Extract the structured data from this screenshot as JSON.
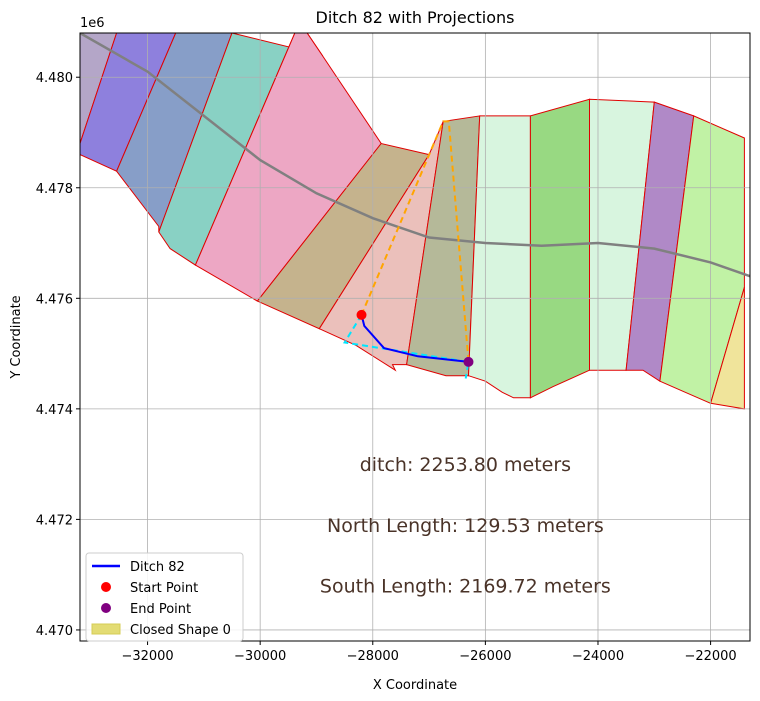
{
  "chart_data": {
    "type": "line",
    "title": "Ditch 82 with Projections",
    "xlabel": "X Coordinate",
    "ylabel": "Y Coordinate",
    "y_offset_label": "1e6",
    "xlim": [
      -33200,
      -21300
    ],
    "ylim": [
      4469800,
      4480800
    ],
    "x_ticks": [
      -32000,
      -30000,
      -28000,
      -26000,
      -24000,
      -22000
    ],
    "x_tick_labels": [
      "−32000",
      "−30000",
      "−28000",
      "−26000",
      "−24000",
      "−22000"
    ],
    "y_ticks": [
      4470000,
      4472000,
      4474000,
      4476000,
      4478000,
      4480000
    ],
    "y_tick_labels": [
      "4.470",
      "4.472",
      "4.474",
      "4.476",
      "4.478",
      "4.480"
    ],
    "grid": true,
    "legend_position": "lower-left",
    "legend": [
      {
        "label": "Ditch 82",
        "kind": "line",
        "color": "#0000ff"
      },
      {
        "label": "Start Point",
        "kind": "point",
        "color": "#ff0000"
      },
      {
        "label": "End Point",
        "kind": "point",
        "color": "#800080"
      },
      {
        "label": "Closed Shape 0",
        "kind": "patch",
        "color": "#e3dc74"
      }
    ],
    "annotations": [
      {
        "text": "ditch: 2253.80 meters",
        "x": -26000,
        "y": 4473000
      },
      {
        "text": "North Length: 129.53 meters",
        "x": -26000,
        "y": 4471900
      },
      {
        "text": "South Length: 2169.72 meters",
        "x": -26000,
        "y": 4470800
      }
    ],
    "polygons": [
      {
        "color": "#b4a6c8",
        "points": [
          [
            -33200,
            4478800
          ],
          [
            -32550,
            4480800
          ],
          [
            -33200,
            4480800
          ]
        ]
      },
      {
        "color": "#8e80dd",
        "points": [
          [
            -33200,
            4478800
          ],
          [
            -33200,
            4478600
          ],
          [
            -32550,
            4478300
          ],
          [
            -31500,
            4480800
          ],
          [
            -32550,
            4480800
          ]
        ]
      },
      {
        "color": "#879ec8",
        "points": [
          [
            -32550,
            4478300
          ],
          [
            -31800,
            4477300
          ],
          [
            -31800,
            4477200
          ],
          [
            -30500,
            4480800
          ],
          [
            -31500,
            4480800
          ]
        ]
      },
      {
        "color": "#89d1c4",
        "points": [
          [
            -31800,
            4477200
          ],
          [
            -31600,
            4476900
          ],
          [
            -31150,
            4476600
          ],
          [
            -29300,
            4481000
          ],
          [
            -28900,
            4480400
          ],
          [
            -30500,
            4480800
          ]
        ]
      },
      {
        "color": "#eda7c4",
        "points": [
          [
            -31150,
            4476600
          ],
          [
            -30050,
            4475950
          ],
          [
            -27850,
            4478800
          ],
          [
            -28900,
            4480400
          ],
          [
            -29300,
            4481000
          ]
        ]
      },
      {
        "color": "#c5b38d",
        "points": [
          [
            -30050,
            4475950
          ],
          [
            -28950,
            4475450
          ],
          [
            -27000,
            4478600
          ],
          [
            -27850,
            4478800
          ]
        ]
      },
      {
        "color": "#ebc0bb",
        "points": [
          [
            -28950,
            4475450
          ],
          [
            -28300,
            4475150
          ],
          [
            -27600,
            4474700
          ],
          [
            -27650,
            4474800
          ],
          [
            -27400,
            4474800
          ],
          [
            -26750,
            4479200
          ],
          [
            -27000,
            4478600
          ]
        ]
      },
      {
        "color": "#b5b999",
        "points": [
          [
            -27400,
            4474800
          ],
          [
            -26700,
            4474600
          ],
          [
            -26300,
            4474600
          ],
          [
            -26100,
            4479300
          ],
          [
            -26750,
            4479200
          ]
        ]
      },
      {
        "color": "#d8f5df",
        "points": [
          [
            -26300,
            4474600
          ],
          [
            -26000,
            4474500
          ],
          [
            -25700,
            4474300
          ],
          [
            -25500,
            4474200
          ],
          [
            -25200,
            4474200
          ],
          [
            -25200,
            4479300
          ],
          [
            -26100,
            4479300
          ]
        ]
      },
      {
        "color": "#98d982",
        "points": [
          [
            -25200,
            4474200
          ],
          [
            -24800,
            4474400
          ],
          [
            -24150,
            4474700
          ],
          [
            -24150,
            4479600
          ],
          [
            -25200,
            4479300
          ]
        ]
      },
      {
        "color": "#d8f5df",
        "points": [
          [
            -24150,
            4474700
          ],
          [
            -23500,
            4474700
          ],
          [
            -23000,
            4479550
          ],
          [
            -24150,
            4479600
          ]
        ]
      },
      {
        "color": "#b089c7",
        "points": [
          [
            -23500,
            4474700
          ],
          [
            -23200,
            4474700
          ],
          [
            -22900,
            4474500
          ],
          [
            -22300,
            4479300
          ],
          [
            -23000,
            4479550
          ]
        ]
      },
      {
        "color": "#c1f2a5",
        "points": [
          [
            -22900,
            4474500
          ],
          [
            -22450,
            4474300
          ],
          [
            -22000,
            4474100
          ],
          [
            -21400,
            4476200
          ],
          [
            -21400,
            4478900
          ],
          [
            -22300,
            4479300
          ]
        ]
      },
      {
        "color": "#f0e49b",
        "points": [
          [
            -22000,
            4474100
          ],
          [
            -21400,
            4474000
          ],
          [
            -21400,
            4476200
          ]
        ]
      }
    ],
    "centerline": [
      [
        -33200,
        4480800
      ],
      [
        -32000,
        4480100
      ],
      [
        -31000,
        4479300
      ],
      [
        -30000,
        4478500
      ],
      [
        -29000,
        4477900
      ],
      [
        -28000,
        4477450
      ],
      [
        -27000,
        4477100
      ],
      [
        -26000,
        4477000
      ],
      [
        -25000,
        4476950
      ],
      [
        -24000,
        4477000
      ],
      [
        -23000,
        4476900
      ],
      [
        -22000,
        4476650
      ],
      [
        -21300,
        4476400
      ]
    ],
    "ditch_line": [
      [
        -28200,
        4475700
      ],
      [
        -28150,
        4475500
      ],
      [
        -27800,
        4475100
      ],
      [
        -27200,
        4474950
      ],
      [
        -26300,
        4474850
      ]
    ],
    "projection_north": [
      [
        -28200,
        4475700
      ],
      [
        -26750,
        4479200
      ],
      [
        -26650,
        4479200
      ],
      [
        -26300,
        4474850
      ]
    ],
    "projection_south": [
      [
        -28200,
        4475700
      ],
      [
        -28500,
        4475200
      ],
      [
        -26300,
        4474850
      ],
      [
        -26350,
        4474550
      ]
    ],
    "start_point": [
      -28200,
      4475700
    ],
    "end_point": [
      -26300,
      4474850
    ]
  }
}
